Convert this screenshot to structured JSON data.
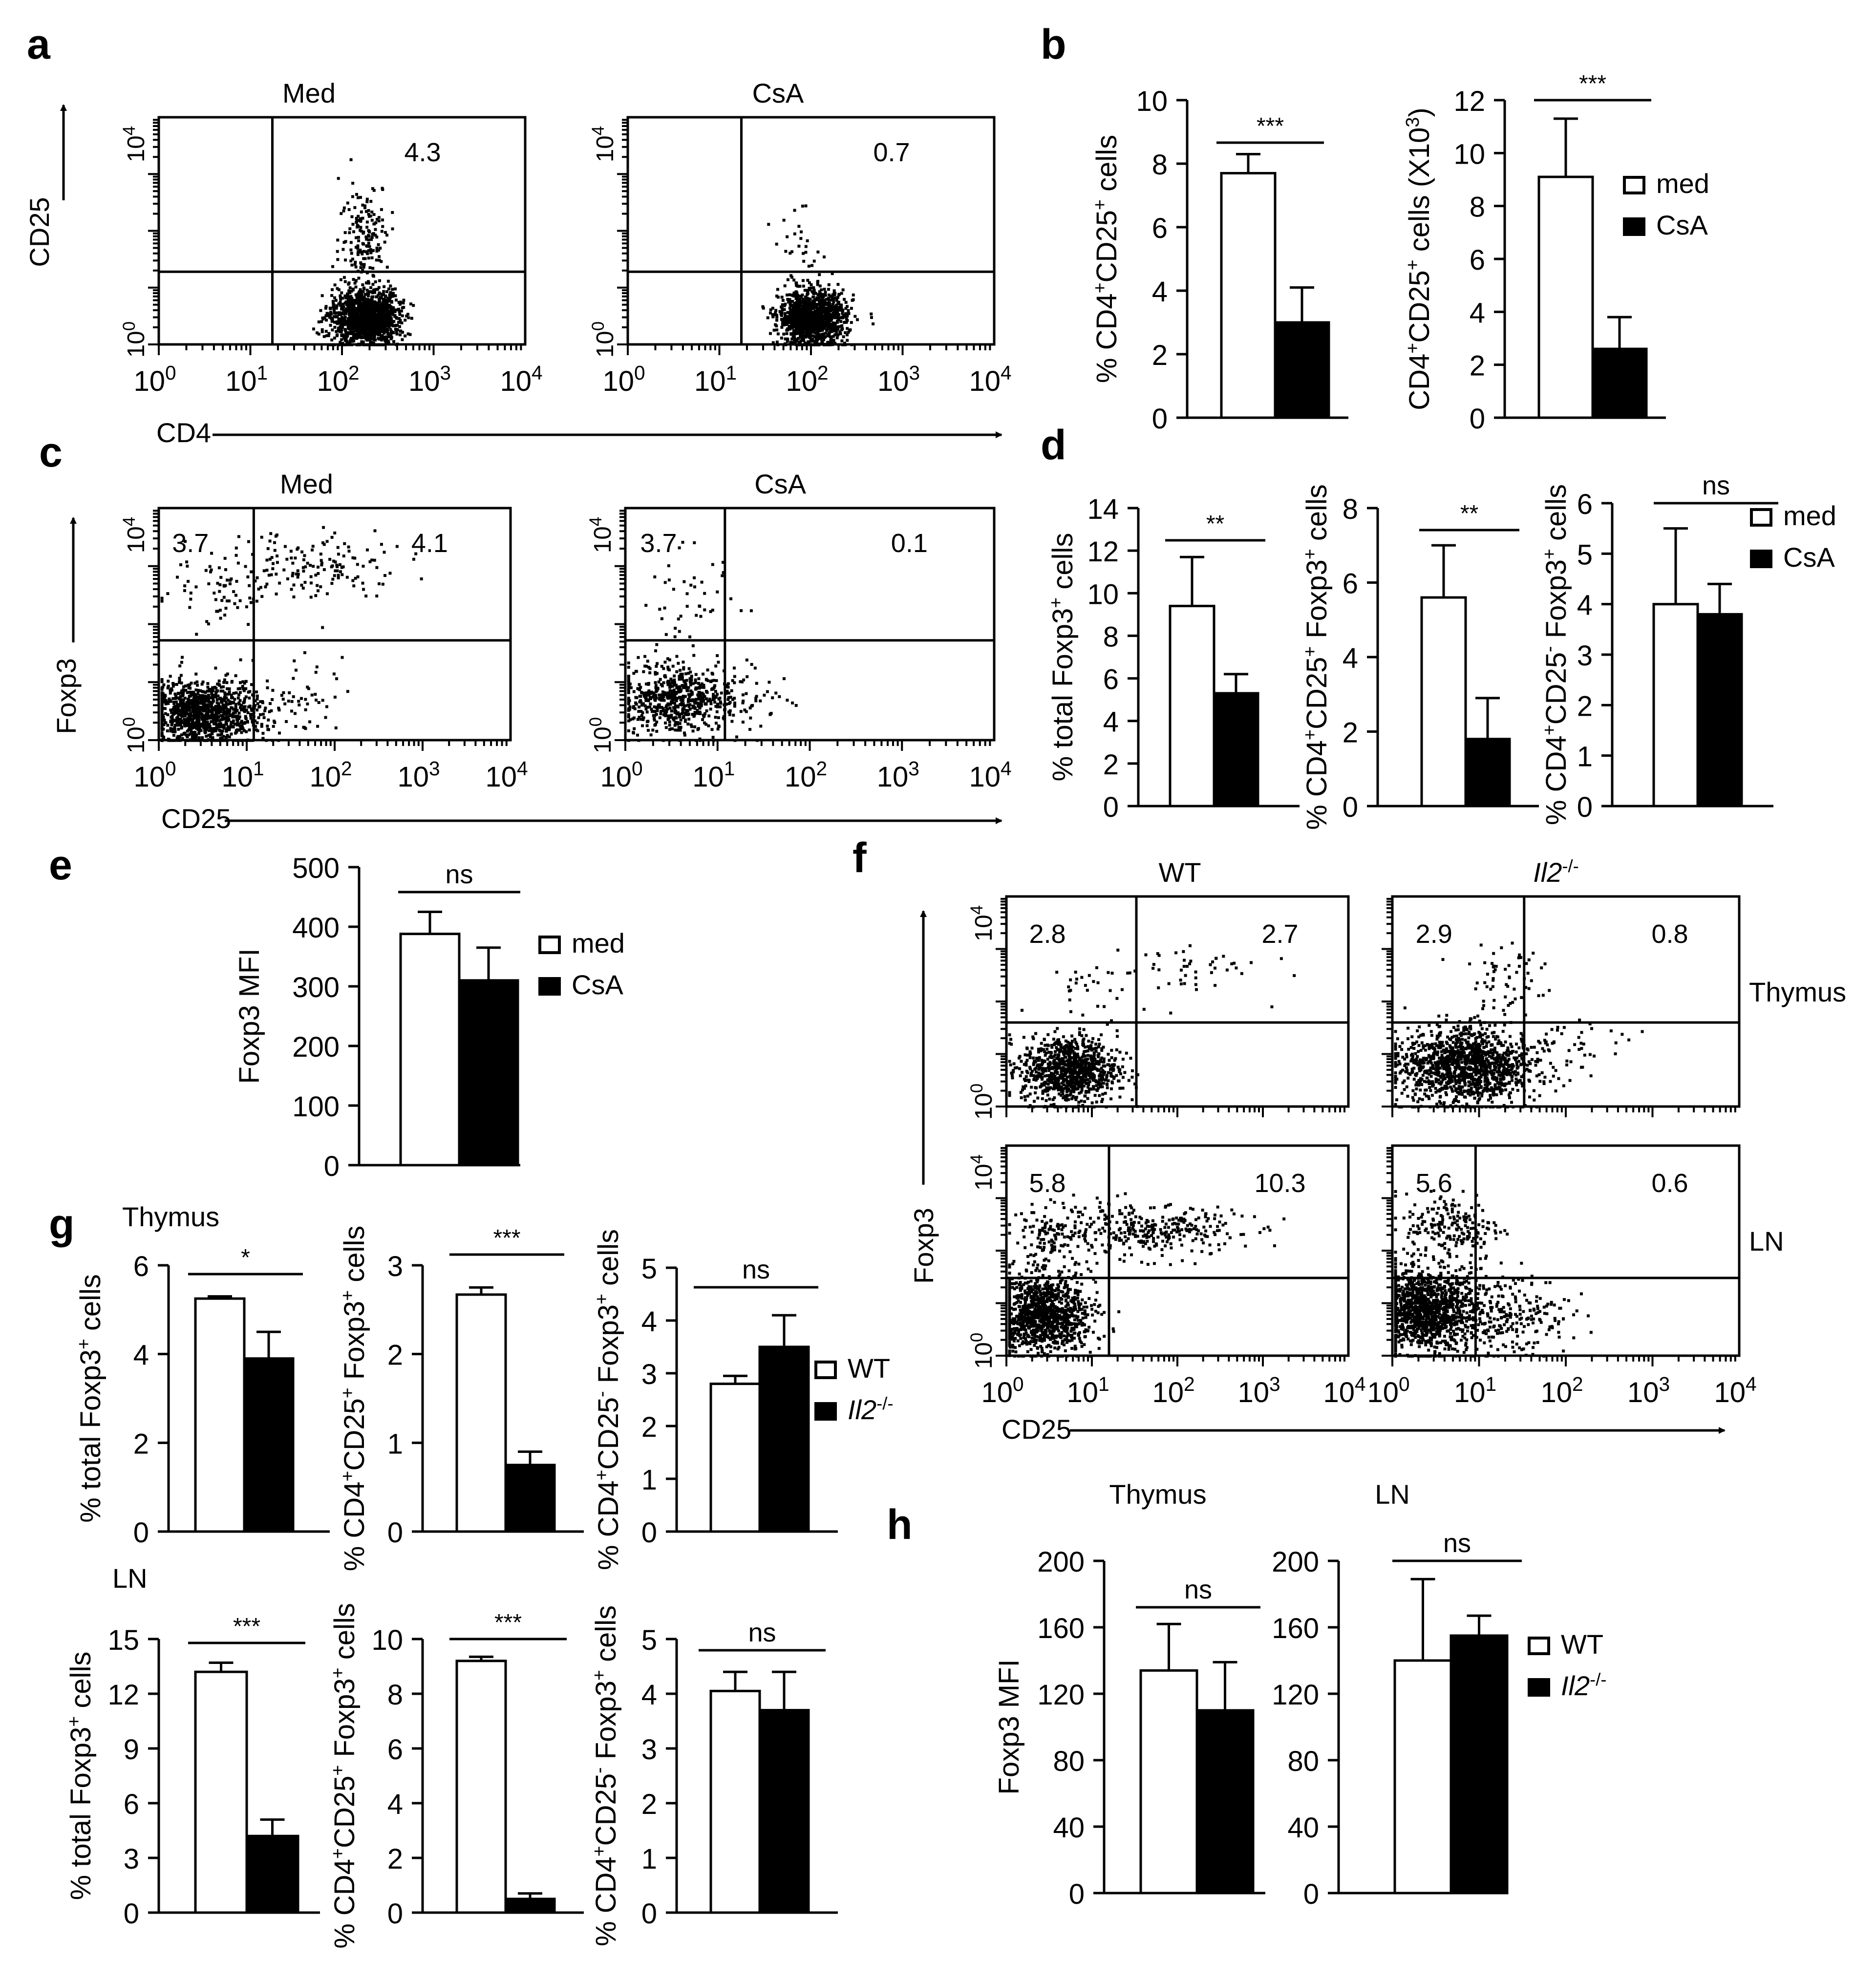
{
  "panels": {
    "a": {
      "letter": "a",
      "axis_x": "CD4",
      "axis_y": "CD25",
      "plots": [
        {
          "title": "Med",
          "quadrant_values": [
            "4.3"
          ]
        },
        {
          "title": "CsA",
          "quadrant_values": [
            "0.7"
          ]
        }
      ]
    },
    "c": {
      "letter": "c",
      "axis_x": "CD25",
      "axis_y": "Foxp3",
      "plots": [
        {
          "title": "Med",
          "quadrant_values": [
            "3.7",
            "4.1"
          ]
        },
        {
          "title": "CsA",
          "quadrant_values": [
            "3.7",
            "0.1"
          ]
        }
      ]
    },
    "f": {
      "letter": "f",
      "axis_x": "CD25",
      "axis_y": "Foxp3",
      "col_titles": [
        "WT",
        "Il2-/-"
      ],
      "row_labels": [
        "Thymus",
        "LN"
      ],
      "plots": [
        {
          "quadrant_values": [
            "2.8",
            "2.7"
          ]
        },
        {
          "quadrant_values": [
            "2.9",
            "0.8"
          ]
        },
        {
          "quadrant_values": [
            "5.8",
            "10.3"
          ]
        },
        {
          "quadrant_values": [
            "5.6",
            "0.6"
          ]
        }
      ]
    },
    "flow_tick_labels": [
      "10",
      "10",
      "10",
      "10",
      "10"
    ],
    "flow_tick_exponents": [
      "0",
      "1",
      "2",
      "3",
      "4"
    ]
  },
  "legends": {
    "b": [
      "med",
      "CsA"
    ],
    "d": [
      "med",
      "CsA"
    ],
    "e": [
      "med",
      "CsA"
    ],
    "g": [
      "WT",
      "Il2-/-"
    ],
    "h": [
      "WT",
      "Il2-/-"
    ]
  },
  "colors": {
    "white_bar": "#ffffff",
    "black_bar": "#000000",
    "axis": "#000000"
  },
  "chart_data": [
    {
      "panel": "b",
      "letter": "b",
      "type": "bar",
      "ylabel": "% CD4+CD25+ cells",
      "ylim": [
        0,
        10
      ],
      "yticks": [
        0,
        2,
        4,
        6,
        8,
        10
      ],
      "series": [
        {
          "name": "med",
          "values": [
            7.7
          ],
          "errors": [
            0.6
          ]
        },
        {
          "name": "CsA",
          "values": [
            3.0
          ],
          "errors": [
            1.1
          ]
        }
      ],
      "significance": "***"
    },
    {
      "panel": "b",
      "type": "bar",
      "ylabel": "CD4+CD25+ cells (X10³)",
      "ylim": [
        0,
        12
      ],
      "yticks": [
        0,
        2,
        4,
        6,
        8,
        10,
        12
      ],
      "series": [
        {
          "name": "med",
          "values": [
            9.1
          ],
          "errors": [
            2.2
          ]
        },
        {
          "name": "CsA",
          "values": [
            2.6
          ],
          "errors": [
            1.2
          ]
        }
      ],
      "significance": "***"
    },
    {
      "panel": "d",
      "letter": "d",
      "type": "bar",
      "ylabel": "% total Foxp3+ cells",
      "ylim": [
        0,
        14
      ],
      "yticks": [
        0,
        2,
        4,
        6,
        8,
        10,
        12,
        14
      ],
      "series": [
        {
          "name": "med",
          "values": [
            9.4
          ],
          "errors": [
            2.3
          ]
        },
        {
          "name": "CsA",
          "values": [
            5.3
          ],
          "errors": [
            0.9
          ]
        }
      ],
      "significance": "**"
    },
    {
      "panel": "d",
      "type": "bar",
      "ylabel": "% CD4+CD25+ Foxp3+ cells",
      "ylim": [
        0,
        8
      ],
      "yticks": [
        0,
        2,
        4,
        6,
        8
      ],
      "series": [
        {
          "name": "med",
          "values": [
            5.6
          ],
          "errors": [
            1.4
          ]
        },
        {
          "name": "CsA",
          "values": [
            1.8
          ],
          "errors": [
            1.1
          ]
        }
      ],
      "significance": "**"
    },
    {
      "panel": "d",
      "type": "bar",
      "ylabel": "% CD4+CD25- Foxp3+ cells",
      "ylim": [
        0,
        6
      ],
      "yticks": [
        0,
        1,
        2,
        3,
        4,
        5,
        6
      ],
      "series": [
        {
          "name": "med",
          "values": [
            4.0
          ],
          "errors": [
            1.5
          ]
        },
        {
          "name": "CsA",
          "values": [
            3.8
          ],
          "errors": [
            0.6
          ]
        }
      ],
      "significance": "ns"
    },
    {
      "panel": "e",
      "letter": "e",
      "type": "bar",
      "ylabel": "Foxp3 MFI",
      "ylim": [
        0,
        500
      ],
      "yticks": [
        0,
        100,
        200,
        300,
        400,
        500
      ],
      "series": [
        {
          "name": "med",
          "values": [
            388
          ],
          "errors": [
            37
          ]
        },
        {
          "name": "CsA",
          "values": [
            310
          ],
          "errors": [
            55
          ]
        }
      ],
      "significance": "ns"
    },
    {
      "panel": "g",
      "letter": "g",
      "subtitle": "Thymus",
      "type": "bar",
      "ylabel": "% total Foxp3+ cells",
      "ylim": [
        0,
        6
      ],
      "yticks": [
        0,
        2,
        4,
        6
      ],
      "series": [
        {
          "name": "WT",
          "values": [
            5.25
          ],
          "errors": [
            0.05
          ]
        },
        {
          "name": "Il2-/-",
          "values": [
            3.9
          ],
          "errors": [
            0.6
          ]
        }
      ],
      "significance": "*"
    },
    {
      "panel": "g",
      "type": "bar",
      "ylabel": "% CD4+CD25+ Foxp3+ cells",
      "ylim": [
        0,
        3
      ],
      "yticks": [
        0,
        1,
        2,
        3
      ],
      "series": [
        {
          "name": "WT",
          "values": [
            2.67
          ],
          "errors": [
            0.08
          ]
        },
        {
          "name": "Il2-/-",
          "values": [
            0.75
          ],
          "errors": [
            0.15
          ]
        }
      ],
      "significance": "***"
    },
    {
      "panel": "g",
      "type": "bar",
      "ylabel": "% CD4+CD25- Foxp3+ cells",
      "ylim": [
        0,
        5
      ],
      "yticks": [
        0,
        1,
        2,
        3,
        4,
        5
      ],
      "series": [
        {
          "name": "WT",
          "values": [
            2.8
          ],
          "errors": [
            0.15
          ]
        },
        {
          "name": "Il2-/-",
          "values": [
            3.5
          ],
          "errors": [
            0.6
          ]
        }
      ],
      "significance": "ns"
    },
    {
      "panel": "g",
      "subtitle": "LN",
      "type": "bar",
      "ylabel": "% total Foxp3+ cells",
      "ylim": [
        0,
        15
      ],
      "yticks": [
        0,
        3,
        6,
        9,
        12,
        15
      ],
      "series": [
        {
          "name": "WT",
          "values": [
            13.2
          ],
          "errors": [
            0.5
          ]
        },
        {
          "name": "Il2-/-",
          "values": [
            4.2
          ],
          "errors": [
            0.9
          ]
        }
      ],
      "significance": "***"
    },
    {
      "panel": "g",
      "type": "bar",
      "ylabel": "% CD4+CD25+ Foxp3+ cells",
      "ylim": [
        0,
        10
      ],
      "yticks": [
        0,
        2,
        4,
        6,
        8,
        10
      ],
      "series": [
        {
          "name": "WT",
          "values": [
            9.2
          ],
          "errors": [
            0.15
          ]
        },
        {
          "name": "Il2-/-",
          "values": [
            0.5
          ],
          "errors": [
            0.2
          ]
        }
      ],
      "significance": "***"
    },
    {
      "panel": "g",
      "type": "bar",
      "ylabel": "% CD4+CD25- Foxp3+ cells",
      "ylim": [
        0,
        5
      ],
      "yticks": [
        0,
        1,
        2,
        3,
        4,
        5
      ],
      "series": [
        {
          "name": "WT",
          "values": [
            4.05
          ],
          "errors": [
            0.35
          ]
        },
        {
          "name": "Il2-/-",
          "values": [
            3.7
          ],
          "errors": [
            0.7
          ]
        }
      ],
      "significance": "ns"
    },
    {
      "panel": "h",
      "letter": "h",
      "title": "Thymus",
      "type": "bar",
      "ylabel": "Foxp3 MFI",
      "ylim": [
        0,
        200
      ],
      "yticks": [
        0,
        40,
        80,
        120,
        160,
        200
      ],
      "series": [
        {
          "name": "WT",
          "values": [
            134
          ],
          "errors": [
            28
          ]
        },
        {
          "name": "Il2-/-",
          "values": [
            110
          ],
          "errors": [
            29
          ]
        }
      ],
      "significance": "ns"
    },
    {
      "panel": "h",
      "title": "LN",
      "type": "bar",
      "ylabel": "",
      "ylim": [
        0,
        200
      ],
      "yticks": [
        0,
        40,
        80,
        120,
        160,
        200
      ],
      "series": [
        {
          "name": "WT",
          "values": [
            140
          ],
          "errors": [
            49
          ]
        },
        {
          "name": "Il2-/-",
          "values": [
            155
          ],
          "errors": [
            12
          ]
        }
      ],
      "significance": "ns"
    }
  ]
}
